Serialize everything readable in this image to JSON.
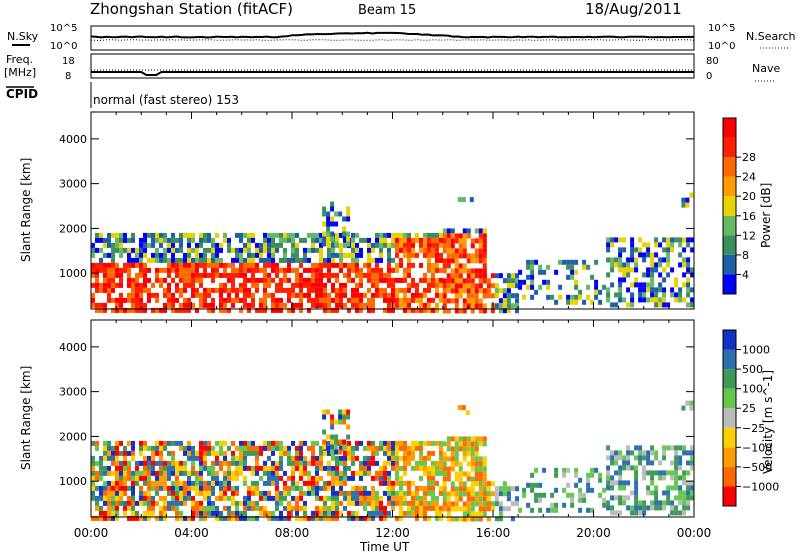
{
  "header": {
    "title": "Zhongshan Station (fitACF)",
    "beam": "Beam 15",
    "date": "18/Aug/2011"
  },
  "strip_labels": {
    "nsky": "N.Sky",
    "nsearch": "N.Search",
    "freq_line1": "Freq.",
    "freq_line2": "[MHz]",
    "nave": "Nave",
    "cpid": "CPID",
    "cpid_value": "normal (fast stereo) 153"
  },
  "strip_ticks": {
    "nsky_left": [
      "10^5",
      "10^0"
    ],
    "nsky_right": [
      "10^5",
      "10^0"
    ],
    "freq_left": [
      "18",
      "8"
    ],
    "nave_right": [
      "80",
      "0"
    ]
  },
  "colors": {
    "power_scale": [
      "#0000ff",
      "#1f5fa8",
      "#3b8f5f",
      "#66b866",
      "#e8d200",
      "#ff9d00",
      "#ff6a00",
      "#ff2000",
      "#ff0000"
    ],
    "velocity_scale": [
      "#ff0000",
      "#ff6a00",
      "#ff9d00",
      "#ffd000",
      "#bbbbbb",
      "#64c850",
      "#3f9a5a",
      "#2e6fb0",
      "#1530c8"
    ]
  },
  "chart_data": [
    {
      "type": "heatmap",
      "title": "",
      "xlabel": "",
      "ylabel": "Slant Range [km]",
      "ylim": [
        200,
        4600
      ],
      "yticks": [
        "1000",
        "2000",
        "3000",
        "4000"
      ],
      "xticks": [
        "00:00",
        "04:00",
        "08:00",
        "12:00",
        "16:00",
        "20:00",
        "00:00"
      ],
      "colorbar": {
        "label": "Power [dB]",
        "range": [
          0,
          32
        ],
        "ticks": [
          "4",
          "8",
          "12",
          "16",
          "20",
          "24",
          "28"
        ]
      }
    },
    {
      "type": "heatmap",
      "title": "",
      "xlabel": "Time UT",
      "ylabel": "Slant Range [km]",
      "ylim": [
        200,
        4600
      ],
      "yticks": [
        "1000",
        "2000",
        "3000",
        "4000"
      ],
      "xticks": [
        "00:00",
        "04:00",
        "08:00",
        "12:00",
        "16:00",
        "20:00",
        "00:00"
      ],
      "colorbar": {
        "label": "Velocity [m s^-1]",
        "ticks": [
          "1000",
          "500",
          "100",
          "25",
          "−25",
          "−100",
          "−500",
          "−1000"
        ]
      }
    }
  ]
}
